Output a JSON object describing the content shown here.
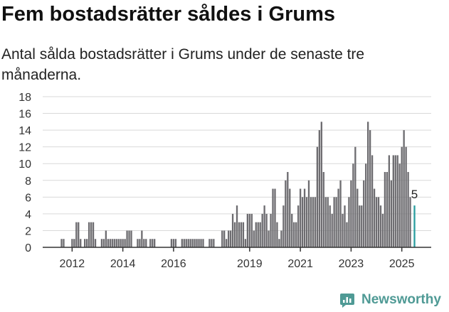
{
  "header": {
    "title": "Fem bostadsrätter såldes i Grums",
    "subtitle": "Antal sålda bostadsrätter i Grums under de senaste tre månaderna."
  },
  "brand": {
    "name": "Newsworthy"
  },
  "colors": {
    "bar": "#6d6c70",
    "highlight": "#2b9ea0",
    "grid": "#d9d9d9",
    "axis": "#333333",
    "brand": "#4f9a95"
  },
  "chart_data": {
    "type": "bar",
    "title": "Fem bostadsrätter såldes i Grums",
    "subtitle": "Antal sålda bostadsrätter i Grums under de senaste tre månaderna.",
    "xlabel": "",
    "ylabel": "",
    "ylim": [
      0,
      18
    ],
    "yticks": [
      0,
      2,
      4,
      6,
      8,
      10,
      12,
      14,
      16,
      18
    ],
    "xticks": [
      "2012",
      "2014",
      "2016",
      "2019",
      "2021",
      "2023",
      "2025"
    ],
    "grid": "horizontal",
    "legend": "none",
    "highlight_label": "5",
    "bars": [
      {
        "x": "2011-08",
        "value": 1
      },
      {
        "x": "2011-09",
        "value": 1
      },
      {
        "x": "2011-10",
        "value": 0
      },
      {
        "x": "2011-11",
        "value": 0
      },
      {
        "x": "2011-12",
        "value": 0
      },
      {
        "x": "2012-01",
        "value": 1
      },
      {
        "x": "2012-02",
        "value": 1
      },
      {
        "x": "2012-03",
        "value": 3
      },
      {
        "x": "2012-04",
        "value": 3
      },
      {
        "x": "2012-05",
        "value": 1
      },
      {
        "x": "2012-06",
        "value": 0
      },
      {
        "x": "2012-07",
        "value": 1
      },
      {
        "x": "2012-08",
        "value": 1
      },
      {
        "x": "2012-09",
        "value": 3
      },
      {
        "x": "2012-10",
        "value": 3
      },
      {
        "x": "2012-11",
        "value": 3
      },
      {
        "x": "2012-12",
        "value": 1
      },
      {
        "x": "2013-01",
        "value": 0
      },
      {
        "x": "2013-02",
        "value": 0
      },
      {
        "x": "2013-03",
        "value": 1
      },
      {
        "x": "2013-04",
        "value": 1
      },
      {
        "x": "2013-05",
        "value": 2
      },
      {
        "x": "2013-06",
        "value": 1
      },
      {
        "x": "2013-07",
        "value": 1
      },
      {
        "x": "2013-08",
        "value": 1
      },
      {
        "x": "2013-09",
        "value": 1
      },
      {
        "x": "2013-10",
        "value": 1
      },
      {
        "x": "2013-11",
        "value": 1
      },
      {
        "x": "2013-12",
        "value": 1
      },
      {
        "x": "2014-01",
        "value": 1
      },
      {
        "x": "2014-02",
        "value": 1
      },
      {
        "x": "2014-03",
        "value": 2
      },
      {
        "x": "2014-04",
        "value": 2
      },
      {
        "x": "2014-05",
        "value": 2
      },
      {
        "x": "2014-06",
        "value": 0
      },
      {
        "x": "2014-07",
        "value": 0
      },
      {
        "x": "2014-08",
        "value": 1
      },
      {
        "x": "2014-09",
        "value": 1
      },
      {
        "x": "2014-10",
        "value": 2
      },
      {
        "x": "2014-11",
        "value": 1
      },
      {
        "x": "2014-12",
        "value": 1
      },
      {
        "x": "2015-01",
        "value": 0
      },
      {
        "x": "2015-02",
        "value": 1
      },
      {
        "x": "2015-03",
        "value": 1
      },
      {
        "x": "2015-04",
        "value": 1
      },
      {
        "x": "2015-05",
        "value": 0
      },
      {
        "x": "2015-06",
        "value": 0
      },
      {
        "x": "2015-07",
        "value": 0
      },
      {
        "x": "2015-08",
        "value": 0
      },
      {
        "x": "2015-09",
        "value": 0
      },
      {
        "x": "2015-10",
        "value": 0
      },
      {
        "x": "2015-11",
        "value": 0
      },
      {
        "x": "2015-12",
        "value": 1
      },
      {
        "x": "2016-01",
        "value": 1
      },
      {
        "x": "2016-02",
        "value": 1
      },
      {
        "x": "2016-03",
        "value": 0
      },
      {
        "x": "2016-04",
        "value": 0
      },
      {
        "x": "2016-05",
        "value": 1
      },
      {
        "x": "2016-06",
        "value": 1
      },
      {
        "x": "2016-07",
        "value": 1
      },
      {
        "x": "2016-08",
        "value": 1
      },
      {
        "x": "2016-09",
        "value": 1
      },
      {
        "x": "2016-10",
        "value": 1
      },
      {
        "x": "2016-11",
        "value": 1
      },
      {
        "x": "2016-12",
        "value": 1
      },
      {
        "x": "2017-01",
        "value": 1
      },
      {
        "x": "2017-02",
        "value": 1
      },
      {
        "x": "2017-03",
        "value": 1
      },
      {
        "x": "2017-04",
        "value": 0
      },
      {
        "x": "2017-05",
        "value": 0
      },
      {
        "x": "2017-06",
        "value": 1
      },
      {
        "x": "2017-07",
        "value": 1
      },
      {
        "x": "2017-08",
        "value": 1
      },
      {
        "x": "2017-09",
        "value": 0
      },
      {
        "x": "2017-10",
        "value": 0
      },
      {
        "x": "2017-11",
        "value": 0
      },
      {
        "x": "2017-12",
        "value": 2
      },
      {
        "x": "2018-01",
        "value": 2
      },
      {
        "x": "2018-02",
        "value": 1
      },
      {
        "x": "2018-03",
        "value": 2
      },
      {
        "x": "2018-04",
        "value": 2
      },
      {
        "x": "2018-05",
        "value": 4
      },
      {
        "x": "2018-06",
        "value": 3
      },
      {
        "x": "2018-07",
        "value": 5
      },
      {
        "x": "2018-08",
        "value": 3
      },
      {
        "x": "2018-09",
        "value": 3
      },
      {
        "x": "2018-10",
        "value": 3
      },
      {
        "x": "2018-11",
        "value": 1
      },
      {
        "x": "2018-12",
        "value": 4
      },
      {
        "x": "2019-01",
        "value": 4
      },
      {
        "x": "2019-02",
        "value": 4
      },
      {
        "x": "2019-03",
        "value": 2
      },
      {
        "x": "2019-04",
        "value": 3
      },
      {
        "x": "2019-05",
        "value": 3
      },
      {
        "x": "2019-06",
        "value": 3
      },
      {
        "x": "2019-07",
        "value": 4
      },
      {
        "x": "2019-08",
        "value": 5
      },
      {
        "x": "2019-09",
        "value": 4
      },
      {
        "x": "2019-10",
        "value": 2
      },
      {
        "x": "2019-11",
        "value": 4
      },
      {
        "x": "2019-12",
        "value": 7
      },
      {
        "x": "2020-01",
        "value": 7
      },
      {
        "x": "2020-02",
        "value": 3
      },
      {
        "x": "2020-03",
        "value": 1
      },
      {
        "x": "2020-04",
        "value": 2
      },
      {
        "x": "2020-05",
        "value": 5
      },
      {
        "x": "2020-06",
        "value": 8
      },
      {
        "x": "2020-07",
        "value": 9
      },
      {
        "x": "2020-08",
        "value": 7
      },
      {
        "x": "2020-09",
        "value": 4
      },
      {
        "x": "2020-10",
        "value": 3
      },
      {
        "x": "2020-11",
        "value": 3
      },
      {
        "x": "2020-12",
        "value": 5
      },
      {
        "x": "2021-01",
        "value": 7
      },
      {
        "x": "2021-02",
        "value": 6
      },
      {
        "x": "2021-03",
        "value": 7
      },
      {
        "x": "2021-04",
        "value": 6
      },
      {
        "x": "2021-05",
        "value": 8
      },
      {
        "x": "2021-06",
        "value": 6
      },
      {
        "x": "2021-07",
        "value": 6
      },
      {
        "x": "2021-08",
        "value": 6
      },
      {
        "x": "2021-09",
        "value": 12
      },
      {
        "x": "2021-10",
        "value": 14
      },
      {
        "x": "2021-11",
        "value": 15
      },
      {
        "x": "2021-12",
        "value": 9
      },
      {
        "x": "2022-01",
        "value": 6
      },
      {
        "x": "2022-02",
        "value": 6
      },
      {
        "x": "2022-03",
        "value": 5
      },
      {
        "x": "2022-04",
        "value": 4
      },
      {
        "x": "2022-05",
        "value": 6
      },
      {
        "x": "2022-06",
        "value": 6
      },
      {
        "x": "2022-07",
        "value": 7
      },
      {
        "x": "2022-08",
        "value": 8
      },
      {
        "x": "2022-09",
        "value": 4
      },
      {
        "x": "2022-10",
        "value": 5
      },
      {
        "x": "2022-11",
        "value": 3
      },
      {
        "x": "2022-12",
        "value": 6
      },
      {
        "x": "2023-01",
        "value": 8
      },
      {
        "x": "2023-02",
        "value": 10
      },
      {
        "x": "2023-03",
        "value": 12
      },
      {
        "x": "2023-04",
        "value": 7
      },
      {
        "x": "2023-05",
        "value": 5
      },
      {
        "x": "2023-06",
        "value": 5
      },
      {
        "x": "2023-07",
        "value": 8
      },
      {
        "x": "2023-08",
        "value": 10
      },
      {
        "x": "2023-09",
        "value": 15
      },
      {
        "x": "2023-10",
        "value": 14
      },
      {
        "x": "2023-11",
        "value": 11
      },
      {
        "x": "2023-12",
        "value": 7
      },
      {
        "x": "2024-01",
        "value": 6
      },
      {
        "x": "2024-02",
        "value": 6
      },
      {
        "x": "2024-03",
        "value": 5
      },
      {
        "x": "2024-04",
        "value": 4
      },
      {
        "x": "2024-05",
        "value": 9
      },
      {
        "x": "2024-06",
        "value": 9
      },
      {
        "x": "2024-07",
        "value": 11
      },
      {
        "x": "2024-08",
        "value": 8
      },
      {
        "x": "2024-09",
        "value": 11
      },
      {
        "x": "2024-10",
        "value": 11
      },
      {
        "x": "2024-11",
        "value": 11
      },
      {
        "x": "2024-12",
        "value": 10
      },
      {
        "x": "2025-01",
        "value": 12
      },
      {
        "x": "2025-02",
        "value": 14
      },
      {
        "x": "2025-03",
        "value": 12
      },
      {
        "x": "2025-04",
        "value": 9
      },
      {
        "x": "2025-05",
        "value": 6
      },
      {
        "x": "2025-06",
        "value": 0
      },
      {
        "x": "2025-07",
        "value": 5,
        "highlight": true
      }
    ]
  }
}
